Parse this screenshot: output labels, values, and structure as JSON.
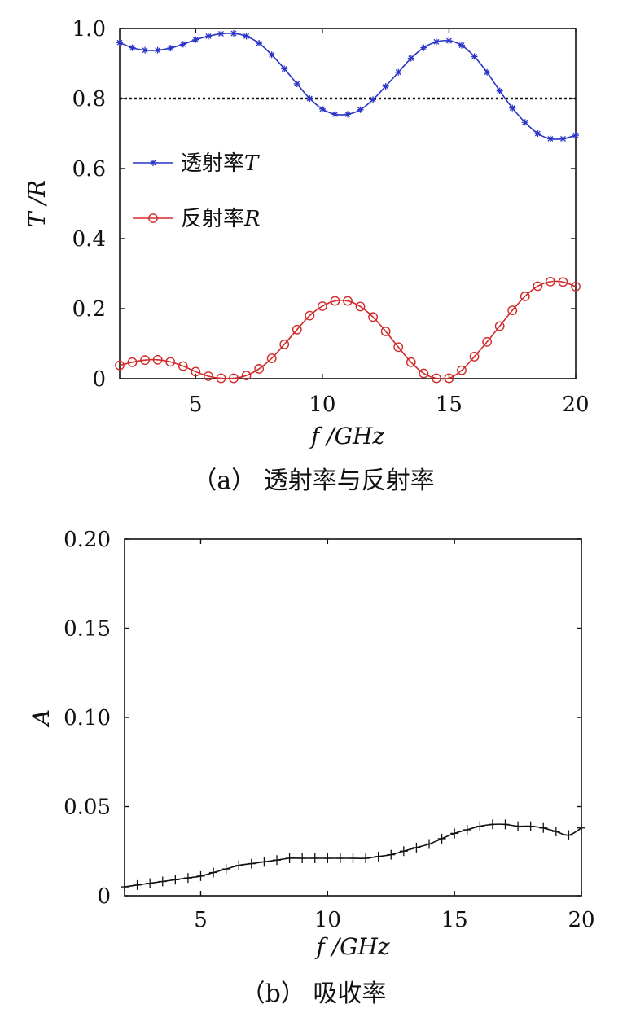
{
  "chart_data": [
    {
      "type": "line",
      "panel": "(a)",
      "caption": "（a） 透射率与反射率",
      "xlabel": "f /GHz",
      "ylabel": "T /R",
      "xlim": [
        2,
        20
      ],
      "ylim": [
        0,
        1.0
      ],
      "xticks": [
        5,
        10,
        15,
        20
      ],
      "yticks": [
        0,
        0.2,
        0.4,
        0.6,
        0.8,
        1.0
      ],
      "ytick_labels": [
        "0",
        "0.2",
        "0.4",
        "0.6",
        "0.8",
        "1.0"
      ],
      "legend_position": "center-left",
      "reference_line": {
        "y": 0.8,
        "style": "dotted",
        "color": "#111111"
      },
      "series": [
        {
          "name": "透射率T",
          "legend_text": "透射率",
          "legend_symbol": "T",
          "color": "#2a35c8",
          "marker": "star",
          "x": [
            2,
            2.5,
            3,
            3.5,
            4,
            4.5,
            5,
            5.5,
            6,
            6.5,
            7,
            7.5,
            8,
            8.5,
            9,
            9.5,
            10,
            10.5,
            11,
            11.5,
            12,
            12.5,
            13,
            13.5,
            14,
            14.5,
            15,
            15.5,
            16,
            16.5,
            17,
            17.5,
            18,
            18.5,
            19,
            19.5,
            20
          ],
          "y": [
            0.96,
            0.945,
            0.938,
            0.938,
            0.944,
            0.955,
            0.968,
            0.978,
            0.985,
            0.986,
            0.978,
            0.958,
            0.925,
            0.885,
            0.842,
            0.8,
            0.77,
            0.755,
            0.755,
            0.768,
            0.797,
            0.835,
            0.875,
            0.915,
            0.945,
            0.962,
            0.965,
            0.952,
            0.92,
            0.875,
            0.822,
            0.773,
            0.732,
            0.7,
            0.685,
            0.685,
            0.695
          ]
        },
        {
          "name": "反射率R",
          "legend_text": "反射率",
          "legend_symbol": "R",
          "color": "#d22a2a",
          "marker": "circle",
          "x": [
            2,
            2.5,
            3,
            3.5,
            4,
            4.5,
            5,
            5.5,
            6,
            6.5,
            7,
            7.5,
            8,
            8.5,
            9,
            9.5,
            10,
            10.5,
            11,
            11.5,
            12,
            12.5,
            13,
            13.5,
            14,
            14.5,
            15,
            15.5,
            16,
            16.5,
            17,
            17.5,
            18,
            18.5,
            19,
            19.5,
            20
          ],
          "y": [
            0.038,
            0.047,
            0.053,
            0.054,
            0.048,
            0.036,
            0.02,
            0.007,
            0.001,
            0.001,
            0.009,
            0.028,
            0.058,
            0.098,
            0.14,
            0.18,
            0.207,
            0.222,
            0.222,
            0.206,
            0.176,
            0.135,
            0.09,
            0.047,
            0.015,
            0.001,
            0.001,
            0.024,
            0.063,
            0.105,
            0.15,
            0.195,
            0.235,
            0.264,
            0.277,
            0.276,
            0.263
          ]
        }
      ]
    },
    {
      "type": "line",
      "panel": "(b)",
      "caption": "（b） 吸收率",
      "xlabel": "f /GHz",
      "ylabel": "A",
      "xlim": [
        2,
        20
      ],
      "ylim": [
        0,
        0.2
      ],
      "xticks": [
        5,
        10,
        15,
        20
      ],
      "yticks": [
        0,
        0.05,
        0.1,
        0.15,
        0.2
      ],
      "ytick_labels": [
        "0",
        "0.05",
        "0.10",
        "0.15",
        "0.20"
      ],
      "series": [
        {
          "color": "#111111",
          "marker": "plus",
          "x": [
            2,
            2.5,
            3,
            3.5,
            4,
            4.5,
            5,
            5.5,
            6,
            6.5,
            7,
            7.5,
            8,
            8.5,
            9,
            9.5,
            10,
            10.5,
            11,
            11.5,
            12,
            12.5,
            13,
            13.5,
            14,
            14.5,
            15,
            15.5,
            16,
            16.5,
            17,
            17.5,
            18,
            18.5,
            19,
            19.5,
            20
          ],
          "y": [
            0.005,
            0.006,
            0.007,
            0.008,
            0.009,
            0.01,
            0.011,
            0.013,
            0.015,
            0.017,
            0.018,
            0.019,
            0.02,
            0.021,
            0.021,
            0.021,
            0.021,
            0.021,
            0.021,
            0.021,
            0.022,
            0.023,
            0.025,
            0.027,
            0.029,
            0.032,
            0.035,
            0.037,
            0.039,
            0.04,
            0.04,
            0.039,
            0.039,
            0.038,
            0.036,
            0.034,
            0.038
          ]
        }
      ]
    }
  ]
}
